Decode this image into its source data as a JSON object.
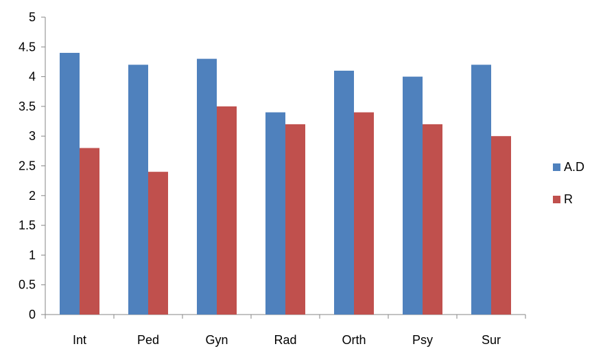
{
  "chart_data": {
    "type": "bar",
    "title": "",
    "xlabel": "",
    "ylabel": "",
    "categories": [
      "Int",
      "Ped",
      "Gyn",
      "Rad",
      "Orth",
      "Psy",
      "Sur"
    ],
    "series": [
      {
        "name": "A.D",
        "color": "#4F81BD",
        "values": [
          4.4,
          4.2,
          4.3,
          3.4,
          4.1,
          4.0,
          4.2
        ]
      },
      {
        "name": "R",
        "color": "#C0504D",
        "values": [
          2.8,
          2.4,
          3.5,
          3.2,
          3.4,
          3.2,
          3.0
        ]
      }
    ],
    "ylim": [
      0,
      5
    ],
    "yticks": [
      "0",
      "0.5",
      "1",
      "1.5",
      "2",
      "2.5",
      "3",
      "3.5",
      "4",
      "4.5",
      "5"
    ],
    "grid": false,
    "legend_position": "right"
  }
}
